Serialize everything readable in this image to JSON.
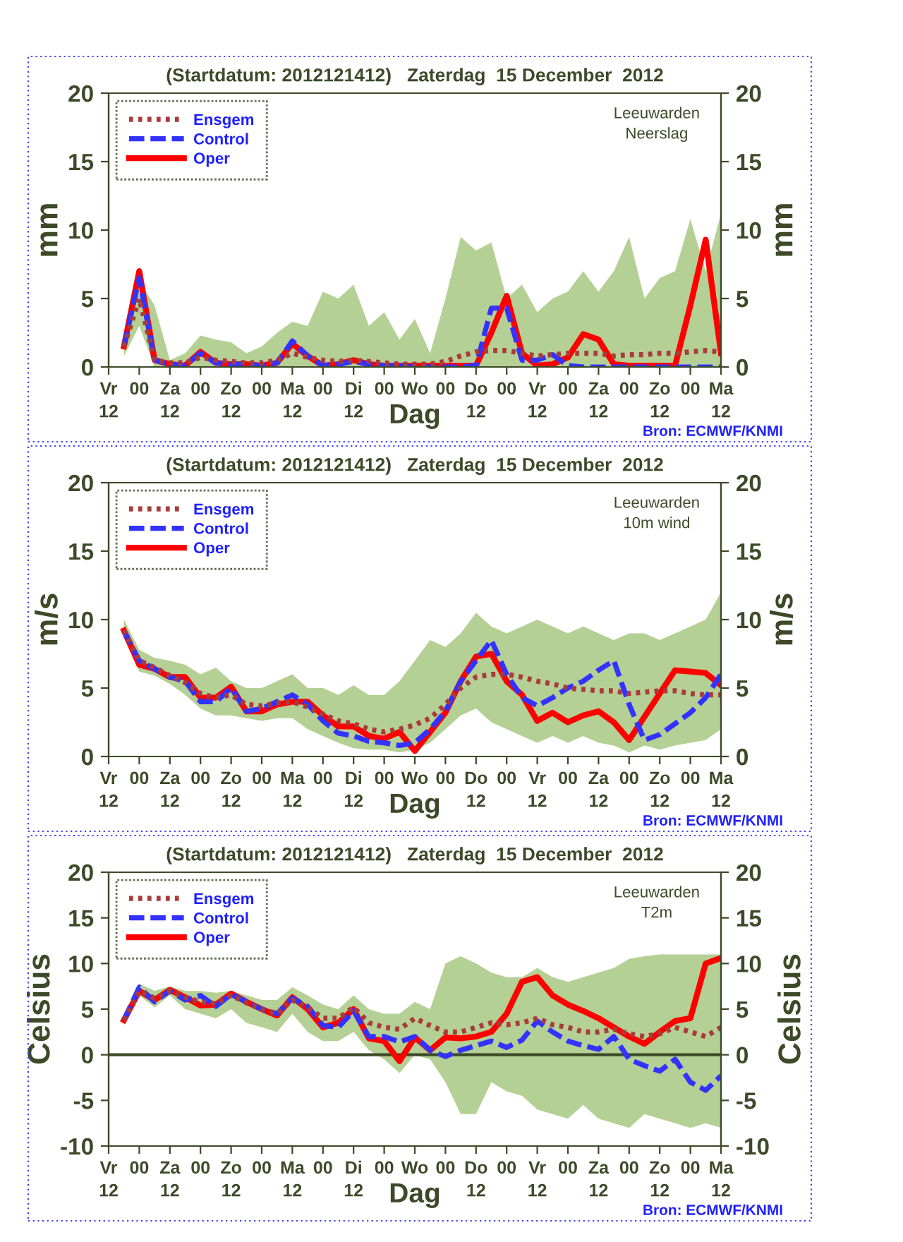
{
  "chart_data": [
    {
      "type": "line",
      "title": "(Startdatum: 2012121412)   Zaterdag  15 December  2012",
      "xlabel": "Dag",
      "ylabel": "mm",
      "y2label": "mm",
      "annotations": [
        "Leeuwarden\nNeerslag",
        "Bron: ECMWF/KNMI"
      ],
      "x": [
        "2012-12-14T18:00",
        "2012-12-15T00:00",
        "2012-12-15T06:00",
        "2012-12-15T12:00",
        "2012-12-15T18:00",
        "2012-12-16T00:00",
        "2012-12-16T06:00",
        "2012-12-16T12:00",
        "2012-12-16T18:00",
        "2012-12-17T00:00",
        "2012-12-17T06:00",
        "2012-12-17T12:00",
        "2012-12-17T18:00",
        "2012-12-18T00:00",
        "2012-12-18T06:00",
        "2012-12-18T12:00",
        "2012-12-18T18:00",
        "2012-12-19T00:00",
        "2012-12-19T06:00",
        "2012-12-19T12:00",
        "2012-12-19T18:00",
        "2012-12-20T00:00",
        "2012-12-20T06:00",
        "2012-12-20T12:00",
        "2012-12-20T18:00",
        "2012-12-21T00:00",
        "2012-12-21T06:00",
        "2012-12-21T12:00",
        "2012-12-21T18:00",
        "2012-12-22T00:00",
        "2012-12-22T06:00",
        "2012-12-22T12:00",
        "2012-12-22T18:00",
        "2012-12-23T00:00",
        "2012-12-23T06:00",
        "2012-12-23T12:00",
        "2012-12-23T18:00",
        "2012-12-24T00:00",
        "2012-12-24T06:00",
        "2012-12-24T12:00"
      ],
      "xlim": [
        "2012-12-14T12:00",
        "2012-12-24T12:00"
      ],
      "xticks": [
        {
          "value": "2012-12-14T12:00",
          "label": "Vr\n12"
        },
        {
          "value": "2012-12-15T00:00",
          "label": "00\n "
        },
        {
          "value": "2012-12-15T12:00",
          "label": "Za\n12"
        },
        {
          "value": "2012-12-16T00:00",
          "label": "00\n "
        },
        {
          "value": "2012-12-16T12:00",
          "label": "Zo\n12"
        },
        {
          "value": "2012-12-17T00:00",
          "label": "00\n "
        },
        {
          "value": "2012-12-17T12:00",
          "label": "Ma\n12"
        },
        {
          "value": "2012-12-18T00:00",
          "label": "00\n "
        },
        {
          "value": "2012-12-18T12:00",
          "label": "Di\n12"
        },
        {
          "value": "2012-12-19T00:00",
          "label": "00\n "
        },
        {
          "value": "2012-12-19T12:00",
          "label": "Wo\n "
        },
        {
          "value": "2012-12-20T00:00",
          "label": "00\n "
        },
        {
          "value": "2012-12-20T12:00",
          "label": "Do\n12"
        },
        {
          "value": "2012-12-21T00:00",
          "label": "00\n "
        },
        {
          "value": "2012-12-21T12:00",
          "label": "Vr\n12"
        },
        {
          "value": "2012-12-22T00:00",
          "label": "00\n "
        },
        {
          "value": "2012-12-22T12:00",
          "label": "Za\n12"
        },
        {
          "value": "2012-12-23T00:00",
          "label": "00\n "
        },
        {
          "value": "2012-12-23T12:00",
          "label": "Zo\n12"
        },
        {
          "value": "2012-12-24T00:00",
          "label": "00\n "
        },
        {
          "value": "2012-12-24T12:00",
          "label": "Ma\n12"
        }
      ],
      "ylim": [
        0,
        20
      ],
      "yticks": [
        0,
        5,
        10,
        15,
        20
      ],
      "y2lim": [
        0,
        20
      ],
      "y2ticks": [
        0,
        5,
        10,
        15,
        20
      ],
      "legend": "top left",
      "grid": false,
      "series": [
        {
          "name": "Ensgem",
          "color": "#a83c3c",
          "line_style": "dotted",
          "values": [
            1.5,
            5,
            0.5,
            0.3,
            0.3,
            0.7,
            0.5,
            0.4,
            0.3,
            0.3,
            0.5,
            1.0,
            0.7,
            0.5,
            0.4,
            0.5,
            0.4,
            0.3,
            0.2,
            0.2,
            0.2,
            0.4,
            0.8,
            1.1,
            1.2,
            1.2,
            1.0,
            0.8,
            0.9,
            1.0,
            1.0,
            1.0,
            0.8,
            0.9,
            0.9,
            1.0,
            1.0,
            1.1,
            1.2,
            1.1
          ],
          "lower": [
            0.8,
            3.0,
            0,
            0,
            0,
            0,
            0,
            0,
            0,
            0,
            0,
            0,
            0,
            0,
            0,
            0,
            0,
            0,
            0,
            0,
            0,
            0,
            0,
            0,
            0,
            0,
            0,
            0,
            0,
            0,
            0,
            0,
            0,
            0,
            0,
            0,
            0,
            0,
            0,
            0
          ],
          "upper": [
            2,
            6.3,
            4.5,
            0.5,
            1.0,
            2.3,
            2.0,
            1.8,
            1.0,
            1.5,
            2.5,
            3.3,
            3.0,
            5.5,
            5.0,
            6.0,
            3.0,
            4.0,
            2.0,
            3.5,
            1.0,
            5.0,
            9.5,
            8.5,
            9.1,
            5.0,
            6.0,
            4.0,
            5.0,
            5.5,
            7.0,
            5.5,
            7.0,
            9.5,
            5.0,
            6.5,
            7.0,
            10.8,
            7.0,
            11.2
          ]
        },
        {
          "name": "Control",
          "color": "#3333ff",
          "line_style": "dashed",
          "values": [
            1.5,
            6.5,
            0.5,
            0.2,
            0.1,
            1.0,
            0.3,
            0.2,
            0.2,
            0.1,
            0.3,
            1.9,
            0.8,
            0.1,
            0.2,
            0.4,
            0.2,
            0.1,
            0.1,
            0,
            0,
            0,
            0,
            0.1,
            4.3,
            4.3,
            0.5,
            0.5,
            0.9,
            0.1,
            0,
            0,
            0,
            0,
            0,
            0,
            0,
            0,
            0,
            0
          ]
        },
        {
          "name": "Oper",
          "color": "#ff0000",
          "line_style": "solid",
          "values": [
            1.5,
            7.0,
            0.5,
            0.2,
            0.1,
            1.1,
            0.3,
            0.2,
            0.2,
            0.1,
            0.3,
            1.7,
            0.8,
            0.1,
            0.2,
            0.5,
            0.2,
            0.1,
            0.1,
            0.1,
            0.1,
            0.1,
            0.1,
            0.1,
            2.5,
            5.2,
            1.0,
            0.1,
            0.2,
            0.7,
            2.4,
            2.0,
            0.2,
            0.1,
            0.1,
            0.1,
            0.1,
            4.5,
            9.3,
            1.0
          ]
        }
      ]
    },
    {
      "type": "line",
      "title": "(Startdatum: 2012121412)   Zaterdag  15 December  2012",
      "xlabel": "Dag",
      "ylabel": "m/s",
      "y2label": "m/s",
      "annotations": [
        "Leeuwarden\n10m wind",
        "Bron: ECMWF/KNMI"
      ],
      "x": [
        "2012-12-14T18:00",
        "2012-12-15T00:00",
        "2012-12-15T06:00",
        "2012-12-15T12:00",
        "2012-12-15T18:00",
        "2012-12-16T00:00",
        "2012-12-16T06:00",
        "2012-12-16T12:00",
        "2012-12-16T18:00",
        "2012-12-17T00:00",
        "2012-12-17T06:00",
        "2012-12-17T12:00",
        "2012-12-17T18:00",
        "2012-12-18T00:00",
        "2012-12-18T06:00",
        "2012-12-18T12:00",
        "2012-12-18T18:00",
        "2012-12-19T00:00",
        "2012-12-19T06:00",
        "2012-12-19T12:00",
        "2012-12-19T18:00",
        "2012-12-20T00:00",
        "2012-12-20T06:00",
        "2012-12-20T12:00",
        "2012-12-20T18:00",
        "2012-12-21T00:00",
        "2012-12-21T06:00",
        "2012-12-21T12:00",
        "2012-12-21T18:00",
        "2012-12-22T00:00",
        "2012-12-22T06:00",
        "2012-12-22T12:00",
        "2012-12-22T18:00",
        "2012-12-23T00:00",
        "2012-12-23T06:00",
        "2012-12-23T12:00",
        "2012-12-23T18:00",
        "2012-12-24T00:00",
        "2012-12-24T06:00",
        "2012-12-24T12:00"
      ],
      "xlim": [
        "2012-12-14T12:00",
        "2012-12-24T12:00"
      ],
      "xticks": [
        {
          "value": "2012-12-14T12:00",
          "label": "Vr\n12"
        },
        {
          "value": "2012-12-15T00:00",
          "label": "00\n "
        },
        {
          "value": "2012-12-15T12:00",
          "label": "Za\n12"
        },
        {
          "value": "2012-12-16T00:00",
          "label": "00\n "
        },
        {
          "value": "2012-12-16T12:00",
          "label": "Zo\n12"
        },
        {
          "value": "2012-12-17T00:00",
          "label": "00\n "
        },
        {
          "value": "2012-12-17T12:00",
          "label": "Ma\n12"
        },
        {
          "value": "2012-12-18T00:00",
          "label": "00\n "
        },
        {
          "value": "2012-12-18T12:00",
          "label": "Di\n12"
        },
        {
          "value": "2012-12-19T00:00",
          "label": "00\n "
        },
        {
          "value": "2012-12-19T12:00",
          "label": "Wo\n "
        },
        {
          "value": "2012-12-20T00:00",
          "label": "00\n "
        },
        {
          "value": "2012-12-20T12:00",
          "label": "Do\n12"
        },
        {
          "value": "2012-12-21T00:00",
          "label": "00\n "
        },
        {
          "value": "2012-12-21T12:00",
          "label": "Vr\n12"
        },
        {
          "value": "2012-12-22T00:00",
          "label": "00\n "
        },
        {
          "value": "2012-12-22T12:00",
          "label": "Za\n12"
        },
        {
          "value": "2012-12-23T00:00",
          "label": "00\n "
        },
        {
          "value": "2012-12-23T12:00",
          "label": "Zo\n12"
        },
        {
          "value": "2012-12-24T00:00",
          "label": "00\n "
        },
        {
          "value": "2012-12-24T12:00",
          "label": "Ma\n12"
        }
      ],
      "ylim": [
        0,
        20
      ],
      "yticks": [
        0,
        5,
        10,
        15,
        20
      ],
      "y2lim": [
        0,
        20
      ],
      "y2ticks": [
        0,
        5,
        10,
        15,
        20
      ],
      "legend": "top left",
      "grid": false,
      "series": [
        {
          "name": "Ensgem",
          "color": "#a83c3c",
          "line_style": "dotted",
          "values": [
            9.2,
            7.0,
            6.5,
            5.9,
            5.4,
            4.6,
            4.3,
            4.5,
            3.8,
            3.7,
            3.9,
            4.0,
            3.6,
            3.1,
            2.6,
            2.4,
            2.0,
            1.8,
            2.0,
            2.3,
            2.8,
            3.8,
            5.0,
            5.8,
            6.0,
            6.0,
            5.8,
            5.5,
            5.3,
            5.0,
            4.9,
            4.8,
            4.8,
            4.6,
            4.7,
            4.8,
            4.8,
            4.6,
            4.5,
            4.5
          ],
          "lower": [
            9.0,
            6.2,
            5.9,
            5.3,
            4.5,
            3.5,
            3.0,
            3.0,
            2.8,
            2.6,
            2.8,
            2.8,
            2.0,
            1.5,
            1.0,
            0.6,
            0.5,
            0.5,
            0.3,
            0.5,
            1.0,
            2.0,
            3.0,
            3.5,
            2.5,
            2.0,
            1.5,
            1.0,
            1.5,
            1.0,
            1.5,
            1.0,
            0.8,
            0.3,
            0.8,
            0.5,
            0.8,
            1.0,
            1.2,
            2.0
          ],
          "upper": [
            10,
            7.8,
            7.2,
            7.0,
            6.7,
            6.0,
            6.5,
            5.5,
            5.0,
            5.0,
            5.5,
            6.0,
            5.0,
            5.0,
            4.5,
            5.2,
            4.5,
            4.5,
            5.5,
            7.0,
            8.5,
            8.0,
            9.0,
            10.5,
            9.5,
            9.0,
            9.5,
            10.0,
            9.5,
            9.0,
            9.5,
            9.0,
            8.5,
            9.0,
            9.0,
            8.5,
            9.0,
            9.5,
            10.0,
            12.0
          ]
        },
        {
          "name": "Control",
          "color": "#3333ff",
          "line_style": "dashed",
          "values": [
            9.2,
            7.0,
            6.4,
            5.8,
            5.5,
            4.0,
            4.0,
            5.0,
            3.3,
            3.5,
            4.0,
            4.5,
            3.8,
            2.6,
            1.7,
            1.5,
            1.1,
            1.0,
            0.8,
            1.0,
            2.0,
            3.3,
            5.5,
            7.0,
            8.5,
            6.0,
            4.3,
            3.7,
            4.3,
            5.0,
            5.5,
            6.3,
            7.0,
            3.8,
            1.2,
            1.6,
            2.4,
            3.2,
            4.3,
            6.0
          ]
        },
        {
          "name": "Oper",
          "color": "#ff0000",
          "line_style": "solid",
          "values": [
            9.2,
            6.7,
            6.4,
            5.8,
            5.8,
            4.3,
            4.3,
            5.1,
            3.3,
            3.3,
            3.8,
            4.0,
            4.0,
            3.0,
            2.2,
            2.2,
            1.5,
            1.3,
            1.8,
            0.4,
            1.8,
            3.2,
            5.5,
            7.3,
            7.5,
            5.5,
            4.5,
            2.6,
            3.2,
            2.5,
            3.0,
            3.3,
            2.5,
            1.2,
            2.9,
            4.6,
            6.3,
            6.2,
            6.1,
            5.2
          ]
        }
      ]
    },
    {
      "type": "line",
      "title": "(Startdatum: 2012121412)   Zaterdag  15 December  2012",
      "xlabel": "Dag",
      "ylabel": "Celsius",
      "y2label": "Celsius",
      "annotations": [
        "Leeuwarden\nT2m",
        "Bron: ECMWF/KNMI"
      ],
      "x": [
        "2012-12-14T18:00",
        "2012-12-15T00:00",
        "2012-12-15T06:00",
        "2012-12-15T12:00",
        "2012-12-15T18:00",
        "2012-12-16T00:00",
        "2012-12-16T06:00",
        "2012-12-16T12:00",
        "2012-12-16T18:00",
        "2012-12-17T00:00",
        "2012-12-17T06:00",
        "2012-12-17T12:00",
        "2012-12-17T18:00",
        "2012-12-18T00:00",
        "2012-12-18T06:00",
        "2012-12-18T12:00",
        "2012-12-18T18:00",
        "2012-12-19T00:00",
        "2012-12-19T06:00",
        "2012-12-19T12:00",
        "2012-12-19T18:00",
        "2012-12-20T00:00",
        "2012-12-20T06:00",
        "2012-12-20T12:00",
        "2012-12-20T18:00",
        "2012-12-21T00:00",
        "2012-12-21T06:00",
        "2012-12-21T12:00",
        "2012-12-21T18:00",
        "2012-12-22T00:00",
        "2012-12-22T06:00",
        "2012-12-22T12:00",
        "2012-12-22T18:00",
        "2012-12-23T00:00",
        "2012-12-23T06:00",
        "2012-12-23T12:00",
        "2012-12-23T18:00",
        "2012-12-24T00:00",
        "2012-12-24T06:00",
        "2012-12-24T12:00"
      ],
      "xlim": [
        "2012-12-14T12:00",
        "2012-12-24T12:00"
      ],
      "xticks": [
        {
          "value": "2012-12-14T12:00",
          "label": "Vr\n12"
        },
        {
          "value": "2012-12-15T00:00",
          "label": "00\n "
        },
        {
          "value": "2012-12-15T12:00",
          "label": "Za\n12"
        },
        {
          "value": "2012-12-16T00:00",
          "label": "00\n "
        },
        {
          "value": "2012-12-16T12:00",
          "label": "Zo\n12"
        },
        {
          "value": "2012-12-17T00:00",
          "label": "00\n "
        },
        {
          "value": "2012-12-17T12:00",
          "label": "Ma\n12"
        },
        {
          "value": "2012-12-18T00:00",
          "label": "00\n "
        },
        {
          "value": "2012-12-18T12:00",
          "label": "Di\n12"
        },
        {
          "value": "2012-12-19T00:00",
          "label": "00\n "
        },
        {
          "value": "2012-12-19T12:00",
          "label": "Wo\n "
        },
        {
          "value": "2012-12-20T00:00",
          "label": "00\n "
        },
        {
          "value": "2012-12-20T12:00",
          "label": "Do\n12"
        },
        {
          "value": "2012-12-21T00:00",
          "label": "00\n "
        },
        {
          "value": "2012-12-21T12:00",
          "label": "Vr\n12"
        },
        {
          "value": "2012-12-22T00:00",
          "label": "00\n "
        },
        {
          "value": "2012-12-22T12:00",
          "label": "Za\n12"
        },
        {
          "value": "2012-12-23T00:00",
          "label": "00\n "
        },
        {
          "value": "2012-12-23T12:00",
          "label": "Zo\n12"
        },
        {
          "value": "2012-12-24T00:00",
          "label": "00\n "
        },
        {
          "value": "2012-12-24T12:00",
          "label": "Ma\n12"
        }
      ],
      "ylim": [
        -10,
        20
      ],
      "yticks": [
        -10,
        -5,
        0,
        5,
        10,
        15,
        20
      ],
      "y2lim": [
        -10,
        20
      ],
      "y2ticks": [
        -10,
        -5,
        0,
        5,
        10,
        15,
        20
      ],
      "legend": "top left",
      "grid": false,
      "ref_lines": [
        {
          "axis": "y",
          "value": 0,
          "label": null,
          "color": "#3c4a28"
        }
      ],
      "series": [
        {
          "name": "Ensgem",
          "color": "#a83c3c",
          "line_style": "dotted",
          "values": [
            3.8,
            7.0,
            6.2,
            7.0,
            6.3,
            5.8,
            5.6,
            6.5,
            5.7,
            5.0,
            4.5,
            6.0,
            5.2,
            4.0,
            4.0,
            5.2,
            3.5,
            3.0,
            2.8,
            4.0,
            3.2,
            2.5,
            2.5,
            3.0,
            3.5,
            3.3,
            3.5,
            4.0,
            3.3,
            3.0,
            2.5,
            2.5,
            2.8,
            2.3,
            2.0,
            2.3,
            3.0,
            2.5,
            2.0,
            3.0
          ],
          "lower": [
            3.2,
            6.5,
            5.2,
            6.5,
            5.0,
            4.5,
            4.0,
            5.0,
            3.5,
            3.0,
            2.5,
            4.5,
            2.5,
            1.5,
            1.5,
            2.5,
            0.5,
            -0.5,
            -2.0,
            0.0,
            -0.5,
            -3.0,
            -6.5,
            -6.5,
            -3.0,
            -4.0,
            -4.5,
            -6.0,
            -6.5,
            -7.0,
            -5.5,
            -7.0,
            -7.5,
            -8.0,
            -6.5,
            -7.0,
            -7.5,
            -8.0,
            -7.5,
            -8.0
          ],
          "upper": [
            4.2,
            7.8,
            7.0,
            7.5,
            7.0,
            7.0,
            6.8,
            7.0,
            6.5,
            6.0,
            6.0,
            7.4,
            6.5,
            5.5,
            5.0,
            6.5,
            5.0,
            4.5,
            4.5,
            5.8,
            5.0,
            10.0,
            10.8,
            10.0,
            9.0,
            8.5,
            8.5,
            9.5,
            8.5,
            8.0,
            8.5,
            9.0,
            9.5,
            10.5,
            10.8,
            11.0,
            11.0,
            11.0,
            11.0,
            11.0
          ]
        },
        {
          "name": "Control",
          "color": "#3333ff",
          "line_style": "dashed",
          "values": [
            3.8,
            7.4,
            5.8,
            7.0,
            6.0,
            6.5,
            5.3,
            6.6,
            5.8,
            5.0,
            4.5,
            6.2,
            5.3,
            3.2,
            3.0,
            4.8,
            2.0,
            2.0,
            1.4,
            2.0,
            0.5,
            -0.2,
            0.5,
            1.0,
            1.5,
            0.8,
            1.6,
            3.7,
            2.5,
            1.5,
            1.0,
            0.6,
            2.0,
            -0.5,
            -1.2,
            -1.8,
            -0.5,
            -3.0,
            -3.9,
            -2.3
          ]
        },
        {
          "name": "Oper",
          "color": "#ff0000",
          "line_style": "solid",
          "values": [
            3.8,
            7.0,
            6.0,
            7.1,
            6.3,
            5.4,
            5.5,
            6.7,
            5.8,
            5.0,
            4.3,
            6.3,
            5.0,
            3.0,
            3.5,
            5.0,
            1.8,
            1.5,
            -0.7,
            1.9,
            0.5,
            1.9,
            1.8,
            2.0,
            2.5,
            4.5,
            8.0,
            8.5,
            6.5,
            5.5,
            4.8,
            4.0,
            3.0,
            2.0,
            1.2,
            2.5,
            3.7,
            4.0,
            10.0,
            10.6
          ]
        }
      ]
    }
  ]
}
